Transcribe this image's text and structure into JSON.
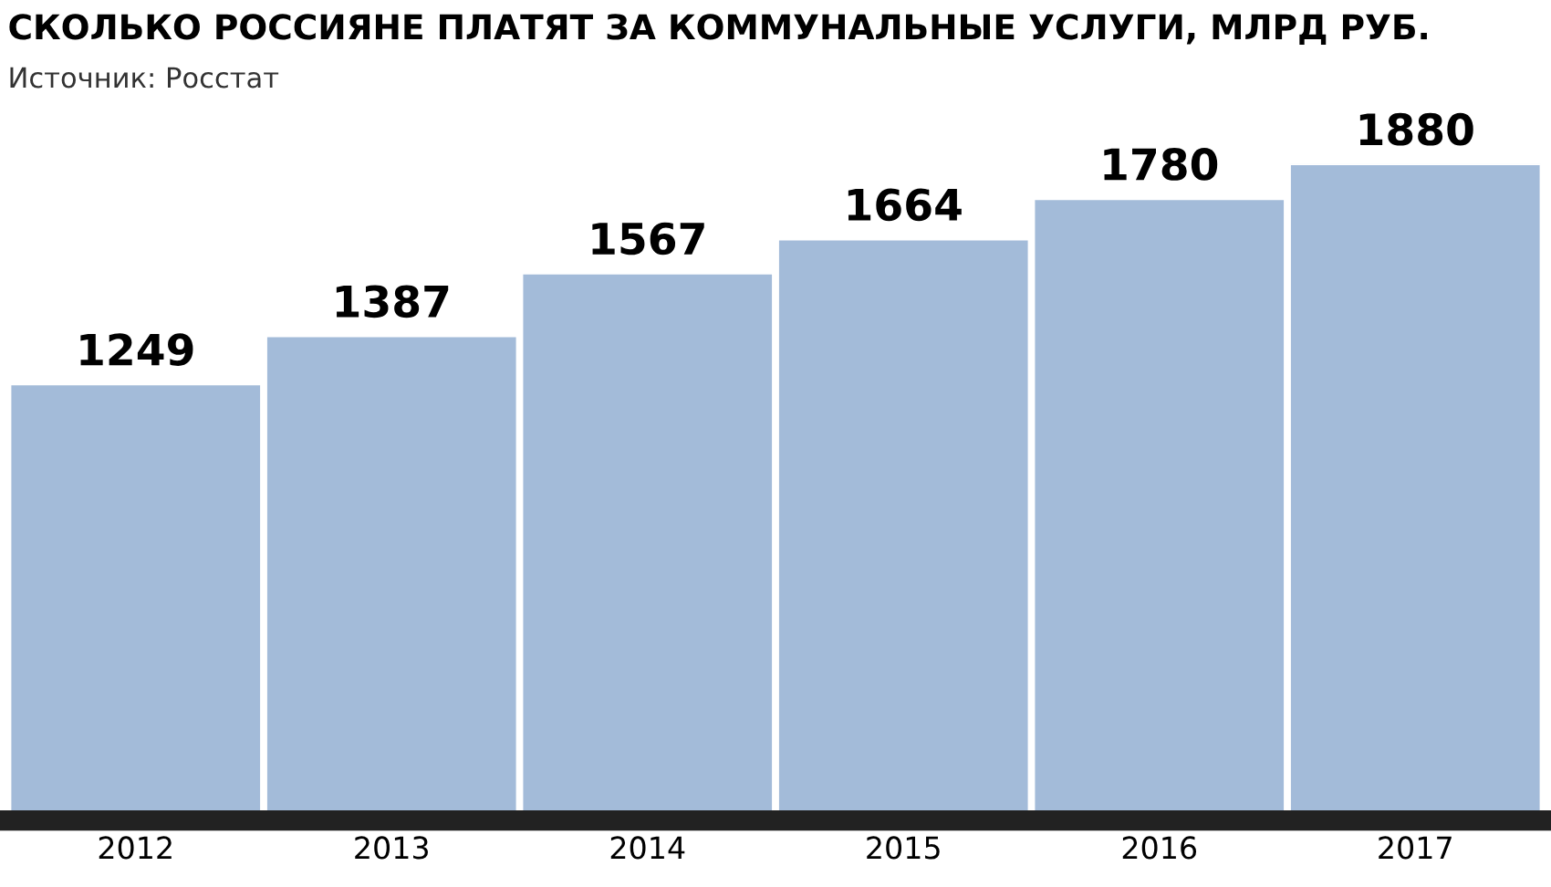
{
  "chart_data": {
    "type": "bar",
    "title": "СКОЛЬКО РОССИЯНЕ ПЛАТЯТ ЗА КОММУНАЛЬНЫЕ УСЛУГИ, МЛРД РУБ.",
    "annotations": [
      "Источник: Росстат"
    ],
    "categories": [
      "2012",
      "2013",
      "2014",
      "2015",
      "2016",
      "2017"
    ],
    "values": [
      1249,
      1387,
      1567,
      1664,
      1780,
      1880
    ],
    "color": "#a3bbd9",
    "data_labels": true,
    "grid": false,
    "legend": false
  }
}
